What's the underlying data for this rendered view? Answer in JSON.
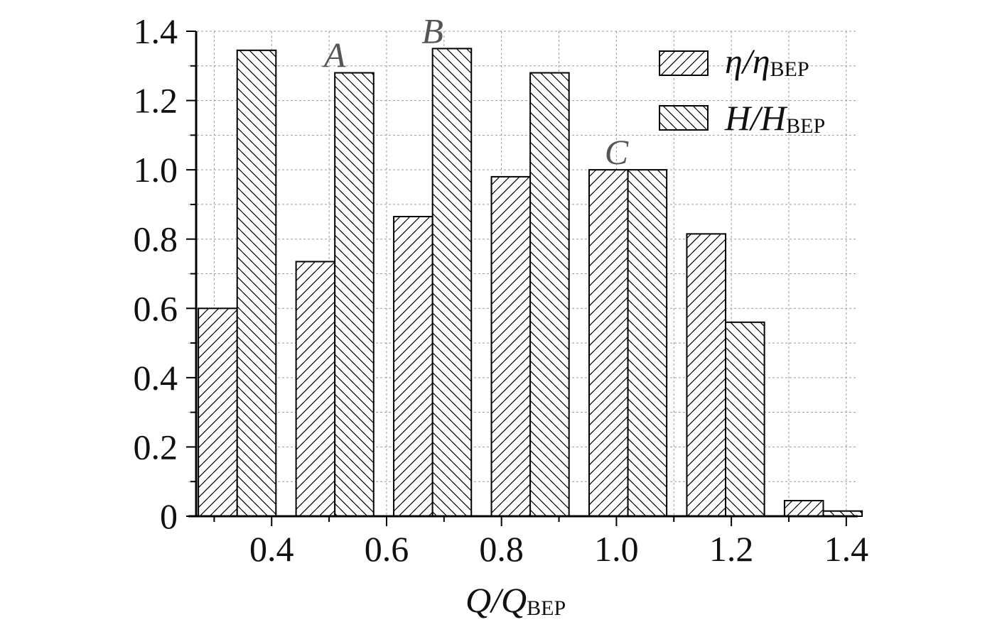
{
  "chart_data": {
    "type": "bar",
    "x": [
      0.34,
      0.51,
      0.68,
      0.85,
      1.02,
      1.19,
      1.36
    ],
    "series": [
      {
        "name": "η/η",
        "name_sub": "BEP",
        "pattern": "hatch-forward",
        "values": [
          0.6,
          0.735,
          0.865,
          0.98,
          1.0,
          0.815,
          0.045
        ]
      },
      {
        "name": "H/H",
        "name_sub": "BEP",
        "pattern": "hatch-backward",
        "values": [
          1.345,
          1.28,
          1.35,
          1.28,
          1.0,
          0.56,
          0.015
        ]
      }
    ],
    "xlabel": "Q/Q",
    "xlabel_sub": "BEP",
    "ylabel": "",
    "xlim": [
      0.255,
      1.42
    ],
    "ylim": [
      0,
      1.4
    ],
    "xticks": [
      "0.4",
      "0.6",
      "0.8",
      "1.0",
      "1.2",
      "1.4"
    ],
    "xtick_values": [
      0.4,
      0.6,
      0.8,
      1.0,
      1.2,
      1.4
    ],
    "yticks": [
      "0",
      "0.2",
      "0.4",
      "0.6",
      "0.8",
      "1.0",
      "1.2",
      "1.4"
    ],
    "ytick_values": [
      0,
      0.2,
      0.4,
      0.6,
      0.8,
      1.0,
      1.2,
      1.4
    ],
    "grid": true,
    "legend_position": "top-right",
    "annotations": [
      {
        "text": "A",
        "x": 0.51,
        "y": 1.28
      },
      {
        "text": "B",
        "x": 0.68,
        "y": 1.35
      },
      {
        "text": "C",
        "x": 1.0,
        "y": 1.0
      }
    ],
    "colors": {
      "bar_fill": "#ffffff",
      "bar_stroke": "#000000",
      "grid": "#9a9a9a"
    }
  }
}
